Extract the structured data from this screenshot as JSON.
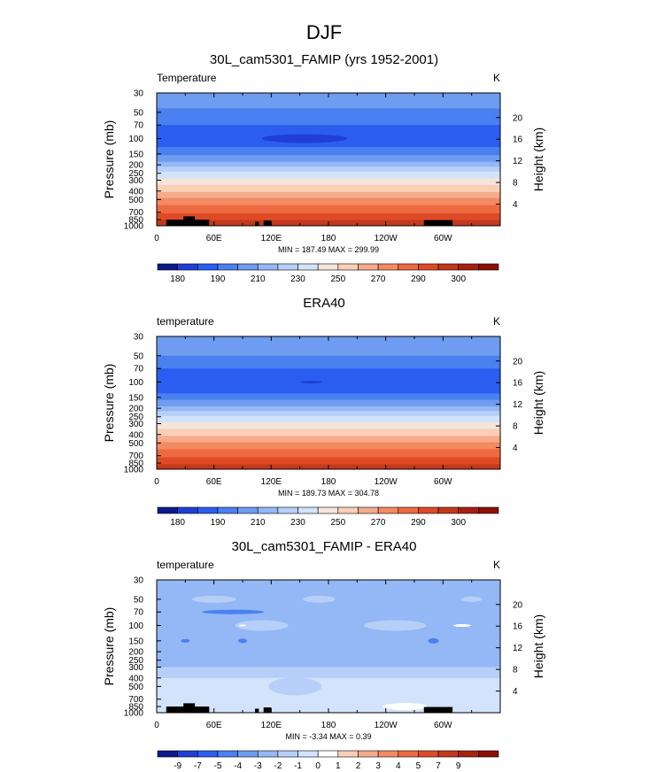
{
  "figure": {
    "title": "DJF"
  },
  "chart_data": [
    {
      "type": "heatmap",
      "title": "30L_cam5301_FAMIP (yrs 1952-2001)",
      "variable_label": "Temperature",
      "units": "K",
      "xlabel": "",
      "ylabel": "Pressure (mb)",
      "y2label": "Height (km)",
      "x_ticks": [
        "0",
        "60E",
        "120E",
        "180",
        "120W",
        "60W"
      ],
      "x_tick_values": [
        0,
        60,
        120,
        180,
        240,
        300
      ],
      "xlim": [
        0,
        360
      ],
      "y_ticks": [
        "30",
        "50",
        "70",
        "100",
        "150",
        "200",
        "250",
        "300",
        "400",
        "500",
        "700",
        "850",
        "1000"
      ],
      "y_tick_values": [
        30,
        50,
        70,
        100,
        150,
        200,
        250,
        300,
        400,
        500,
        700,
        850,
        1000
      ],
      "ylim": [
        30,
        1000
      ],
      "y2_ticks": [
        "4",
        "8",
        "12",
        "16",
        "20"
      ],
      "y2_tick_values": [
        4,
        8,
        12,
        16,
        20
      ],
      "min_max_text": "MIN = 187.49  MAX = 299.99",
      "min": 187.49,
      "max": 299.99,
      "colorbar_labels": [
        "180",
        "190",
        "210",
        "230",
        "250",
        "270",
        "290",
        "300"
      ],
      "layers": [
        {
          "p": 30,
          "color": "#6e9cf0"
        },
        {
          "p": 45,
          "color": "#4a80f0"
        },
        {
          "p": 70,
          "color": "#2b5ef0"
        },
        {
          "p": 125,
          "color": "#4a80f0"
        },
        {
          "p": 155,
          "color": "#6e9cf0"
        },
        {
          "p": 185,
          "color": "#94b7f5"
        },
        {
          "p": 210,
          "color": "#b7cff8"
        },
        {
          "p": 240,
          "color": "#d2e3fb"
        },
        {
          "p": 285,
          "color": "#f5e4d9"
        },
        {
          "p": 340,
          "color": "#fbcfb5"
        },
        {
          "p": 410,
          "color": "#f6ab8c"
        },
        {
          "p": 480,
          "color": "#f48a62"
        },
        {
          "p": 580,
          "color": "#ee6a40"
        },
        {
          "p": 720,
          "color": "#df4a26"
        },
        {
          "p": 860,
          "color": "#c3391b"
        }
      ]
    },
    {
      "type": "heatmap",
      "title": "ERA40",
      "variable_label": "temperature",
      "units": "K",
      "xlabel": "",
      "ylabel": "Pressure (mb)",
      "y2label": "Height (km)",
      "x_ticks": [
        "0",
        "60E",
        "120E",
        "180",
        "120W",
        "60W"
      ],
      "x_tick_values": [
        0,
        60,
        120,
        180,
        240,
        300
      ],
      "xlim": [
        0,
        360
      ],
      "y_ticks": [
        "30",
        "50",
        "70",
        "100",
        "150",
        "200",
        "250",
        "300",
        "400",
        "500",
        "700",
        "850",
        "1000"
      ],
      "y_tick_values": [
        30,
        50,
        70,
        100,
        150,
        200,
        250,
        300,
        400,
        500,
        700,
        850,
        1000
      ],
      "ylim": [
        30,
        1000
      ],
      "y2_ticks": [
        "4",
        "8",
        "12",
        "16",
        "20"
      ],
      "y2_tick_values": [
        4,
        8,
        12,
        16,
        20
      ],
      "min_max_text": "MIN = 189.73  MAX = 304.78",
      "min": 189.73,
      "max": 304.78,
      "colorbar_labels": [
        "180",
        "190",
        "210",
        "230",
        "250",
        "270",
        "290",
        "300"
      ],
      "layers": [
        {
          "p": 30,
          "color": "#6e9cf0"
        },
        {
          "p": 50,
          "color": "#4a80f0"
        },
        {
          "p": 70,
          "color": "#2b5ef0"
        },
        {
          "p": 135,
          "color": "#4a80f0"
        },
        {
          "p": 160,
          "color": "#6e9cf0"
        },
        {
          "p": 190,
          "color": "#94b7f5"
        },
        {
          "p": 215,
          "color": "#b7cff8"
        },
        {
          "p": 245,
          "color": "#d2e3fb"
        },
        {
          "p": 290,
          "color": "#f5e4d9"
        },
        {
          "p": 345,
          "color": "#fbcfb5"
        },
        {
          "p": 415,
          "color": "#f6ab8c"
        },
        {
          "p": 490,
          "color": "#f48a62"
        },
        {
          "p": 590,
          "color": "#ee6a40"
        },
        {
          "p": 730,
          "color": "#df4a26"
        },
        {
          "p": 880,
          "color": "#c3391b"
        }
      ]
    },
    {
      "type": "heatmap",
      "title": "30L_cam5301_FAMIP - ERA40",
      "variable_label": "temperature",
      "units": "K",
      "xlabel": "",
      "ylabel": "Pressure (mb)",
      "y2label": "Height (km)",
      "x_ticks": [
        "0",
        "60E",
        "120E",
        "180",
        "120W",
        "60W"
      ],
      "x_tick_values": [
        0,
        60,
        120,
        180,
        240,
        300
      ],
      "xlim": [
        0,
        360
      ],
      "y_ticks": [
        "30",
        "50",
        "70",
        "100",
        "150",
        "200",
        "250",
        "300",
        "400",
        "500",
        "700",
        "850",
        "1000"
      ],
      "y_tick_values": [
        30,
        50,
        70,
        100,
        150,
        200,
        250,
        300,
        400,
        500,
        700,
        850,
        1000
      ],
      "ylim": [
        30,
        1000
      ],
      "y2_ticks": [
        "4",
        "8",
        "12",
        "16",
        "20"
      ],
      "y2_tick_values": [
        4,
        8,
        12,
        16,
        20
      ],
      "min_max_text": "MIN = -3.34  MAX =  0.39",
      "min": -3.34,
      "max": 0.39,
      "colorbar_labels": [
        "-9",
        "-7",
        "-5",
        "-4",
        "-3",
        "-2",
        "-1",
        "0",
        "1",
        "2",
        "3",
        "4",
        "5",
        "7",
        "9"
      ],
      "layers": [
        {
          "p": 30,
          "color": "#94b7f5"
        },
        {
          "p": 300,
          "color": "#b7cff8"
        },
        {
          "p": 400,
          "color": "#d2e3fb"
        }
      ]
    }
  ],
  "colorbars": {
    "absolute_colors": [
      "#0b1a8c",
      "#1f3fd6",
      "#2b5ef0",
      "#4a80f0",
      "#6e9cf0",
      "#94b7f5",
      "#b7cff8",
      "#d2e3fb",
      "#f5e4d9",
      "#fbcfb5",
      "#f6ab8c",
      "#f48a62",
      "#ee6a40",
      "#df4a26",
      "#c3391b",
      "#a8200f",
      "#8b1006"
    ],
    "difference_colors": [
      "#0b1a8c",
      "#1f3fd6",
      "#2b5ef0",
      "#4a80f0",
      "#6e9cf0",
      "#94b7f5",
      "#b7cff8",
      "#d2e3fb",
      "#ffffff",
      "#fbcfb5",
      "#f6ab8c",
      "#f48a62",
      "#ee6a40",
      "#df4a26",
      "#c3391b",
      "#a8200f",
      "#8b1006"
    ]
  }
}
